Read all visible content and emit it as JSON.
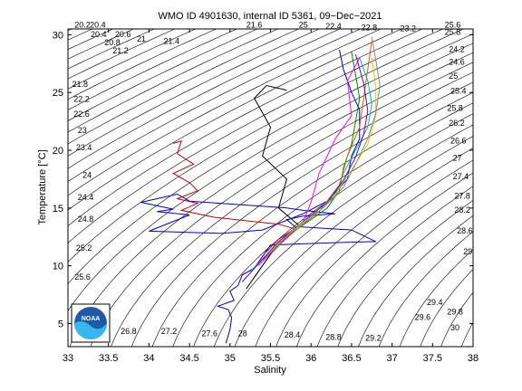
{
  "chart_data": {
    "type": "line",
    "title": "WMO ID 4901630, internal ID 5361, 09−Dec−2021",
    "xlabel": "Salinity",
    "ylabel": "Temperature [°C]",
    "xlim": [
      33,
      38
    ],
    "ylim": [
      3,
      30.5
    ],
    "x_ticks": [
      33,
      33.5,
      34,
      34.5,
      35,
      35.5,
      36,
      36.5,
      37,
      37.5,
      38
    ],
    "x_tick_labels": [
      "33",
      "33.5",
      "34",
      "34.5",
      "35",
      "35.5",
      "36",
      "36.5",
      "37",
      "37.5",
      "38"
    ],
    "y_ticks": [
      5,
      10,
      15,
      20,
      25,
      30
    ],
    "y_tick_labels": [
      "5",
      "10",
      "15",
      "20",
      "25",
      "30"
    ],
    "grid": false,
    "logo_text": "NOAA",
    "density_contours": {
      "levels": [
        20.2,
        20.4,
        20.6,
        20.8,
        21,
        21.2,
        21.4,
        21.6,
        21.8,
        22,
        22.2,
        22.4,
        22.6,
        22.8,
        23,
        23.2,
        23.4,
        23.6,
        23.8,
        24,
        24.2,
        24.4,
        24.6,
        24.8,
        25,
        25.2,
        25.4,
        25.6,
        25.8,
        26,
        26.2,
        26.4,
        26.6,
        26.8,
        27,
        27.2,
        27.4,
        27.6,
        27.8,
        28,
        28.2,
        28.4,
        28.6,
        28.8,
        29,
        29.2,
        29.4,
        29.6,
        29.8,
        30
      ],
      "labels": [
        {
          "text": "20.2",
          "s": 33.08,
          "t": 30.6
        },
        {
          "text": "20.4",
          "s": 33.27,
          "t": 30.6
        },
        {
          "text": "20.4",
          "s": 33.28,
          "t": 29.8
        },
        {
          "text": "20.6",
          "s": 33.58,
          "t": 29.8
        },
        {
          "text": "20.8",
          "s": 33.45,
          "t": 29.1
        },
        {
          "text": "21",
          "s": 33.85,
          "t": 29.4
        },
        {
          "text": "21.2",
          "s": 33.55,
          "t": 28.4
        },
        {
          "text": "21.4",
          "s": 34.18,
          "t": 29.2
        },
        {
          "text": "21.6",
          "s": 35.2,
          "t": 30.6
        },
        {
          "text": "25",
          "s": 35.85,
          "t": 30.6
        },
        {
          "text": "22.4",
          "s": 36.18,
          "t": 30.5
        },
        {
          "text": "22.8",
          "s": 36.62,
          "t": 30.4
        },
        {
          "text": "23.2",
          "s": 37.1,
          "t": 30.3
        },
        {
          "text": "25.6",
          "s": 37.65,
          "t": 30.6
        },
        {
          "text": "25.8",
          "s": 37.65,
          "t": 30.0
        },
        {
          "text": "21.8",
          "s": 33.05,
          "t": 25.5
        },
        {
          "text": "22.2",
          "s": 33.07,
          "t": 24.2
        },
        {
          "text": "22.6",
          "s": 33.07,
          "t": 22.9
        },
        {
          "text": "23",
          "s": 33.12,
          "t": 21.5
        },
        {
          "text": "23.4",
          "s": 33.1,
          "t": 20.0
        },
        {
          "text": "24",
          "s": 33.18,
          "t": 17.6
        },
        {
          "text": "24.4",
          "s": 33.12,
          "t": 15.7
        },
        {
          "text": "24.8",
          "s": 33.12,
          "t": 13.8
        },
        {
          "text": "25.2",
          "s": 33.1,
          "t": 11.3
        },
        {
          "text": "25.6",
          "s": 33.08,
          "t": 8.8
        },
        {
          "text": "26",
          "s": 33.13,
          "t": 6.2
        },
        {
          "text": "26.8",
          "s": 33.65,
          "t": 4.1
        },
        {
          "text": "27.2",
          "s": 34.15,
          "t": 4.1
        },
        {
          "text": "27.6",
          "s": 34.65,
          "t": 3.9
        },
        {
          "text": "28",
          "s": 35.1,
          "t": 3.9
        },
        {
          "text": "28.4",
          "s": 35.67,
          "t": 3.8
        },
        {
          "text": "28.8",
          "s": 36.18,
          "t": 3.6
        },
        {
          "text": "29.2",
          "s": 36.67,
          "t": 3.5
        },
        {
          "text": "24.2",
          "s": 37.7,
          "t": 28.5
        },
        {
          "text": "24.6",
          "s": 37.7,
          "t": 27.4
        },
        {
          "text": "25",
          "s": 37.7,
          "t": 26.2
        },
        {
          "text": "25.4",
          "s": 37.72,
          "t": 24.9
        },
        {
          "text": "25.8",
          "s": 37.68,
          "t": 23.4
        },
        {
          "text": "26.2",
          "s": 37.7,
          "t": 22.1
        },
        {
          "text": "26.6",
          "s": 37.72,
          "t": 20.6
        },
        {
          "text": "27",
          "s": 37.75,
          "t": 19.1
        },
        {
          "text": "27.4",
          "s": 37.75,
          "t": 17.5
        },
        {
          "text": "27.8",
          "s": 37.77,
          "t": 15.8
        },
        {
          "text": "28.2",
          "s": 37.77,
          "t": 14.6
        },
        {
          "text": "28.6",
          "s": 37.8,
          "t": 12.8
        },
        {
          "text": "29",
          "s": 37.88,
          "t": 11.0
        },
        {
          "text": "29.4",
          "s": 37.43,
          "t": 6.6
        },
        {
          "text": "29.8",
          "s": 37.68,
          "t": 5.8
        },
        {
          "text": "29.6",
          "s": 37.28,
          "t": 5.3
        },
        {
          "text": "30",
          "s": 37.72,
          "t": 4.4
        }
      ]
    },
    "series": [
      {
        "color": "#0000cc",
        "points": [
          [
            34.95,
            3.3
          ],
          [
            35.0,
            4.5
          ],
          [
            35.02,
            5.5
          ],
          [
            34.98,
            6.2
          ],
          [
            34.85,
            6.5
          ],
          [
            35.05,
            7.0
          ],
          [
            35.0,
            7.8
          ],
          [
            35.1,
            8.3
          ],
          [
            35.15,
            9.2
          ],
          [
            35.3,
            9.8
          ],
          [
            35.4,
            10.8
          ],
          [
            35.5,
            11.8
          ],
          [
            35.9,
            11.9
          ],
          [
            36.3,
            12.0
          ],
          [
            36.8,
            12.1
          ],
          [
            36.5,
            13.1
          ],
          [
            35.8,
            13.4
          ],
          [
            35.7,
            14.0
          ],
          [
            35.9,
            14.3
          ],
          [
            36.3,
            14.5
          ],
          [
            35.9,
            14.8
          ],
          [
            35.7,
            15.0
          ],
          [
            35.1,
            15.3
          ],
          [
            34.5,
            15.6
          ],
          [
            34.35,
            16.2
          ],
          [
            33.9,
            15.5
          ],
          [
            34.3,
            14.9
          ],
          [
            34.1,
            14.7
          ],
          [
            34.5,
            14.4
          ],
          [
            34.0,
            13.0
          ],
          [
            34.9,
            12.8
          ],
          [
            35.4,
            13.1
          ],
          [
            35.9,
            14.5
          ],
          [
            36.2,
            15.6
          ],
          [
            36.45,
            17.5
          ],
          [
            36.5,
            19.5
          ],
          [
            36.6,
            21.0
          ],
          [
            36.6,
            23.5
          ],
          [
            36.5,
            25.0
          ],
          [
            36.4,
            27.0
          ],
          [
            36.35,
            28.7
          ]
        ]
      },
      {
        "color": "#cc0000",
        "points": [
          [
            35.45,
            11.2
          ],
          [
            35.6,
            12.3
          ],
          [
            35.8,
            13.2
          ],
          [
            35.6,
            13.6
          ],
          [
            34.8,
            14.2
          ],
          [
            34.4,
            14.8
          ],
          [
            34.6,
            15.4
          ],
          [
            34.35,
            15.8
          ],
          [
            34.6,
            16.5
          ],
          [
            34.5,
            17.2
          ],
          [
            34.3,
            18.0
          ],
          [
            34.55,
            18.8
          ],
          [
            34.35,
            19.7
          ],
          [
            34.4,
            20.8
          ],
          [
            34.3,
            20.6
          ]
        ]
      },
      {
        "color": "#008800",
        "points": [
          [
            35.3,
            9.0
          ],
          [
            35.5,
            11.0
          ],
          [
            35.75,
            12.8
          ],
          [
            36.0,
            14.0
          ],
          [
            36.2,
            15.0
          ],
          [
            36.35,
            16.5
          ],
          [
            36.4,
            18.5
          ],
          [
            36.5,
            20.5
          ],
          [
            36.55,
            22.5
          ],
          [
            36.6,
            24.5
          ],
          [
            36.55,
            26.5
          ],
          [
            36.5,
            28.5
          ]
        ]
      },
      {
        "color": "#000000",
        "points": [
          [
            35.2,
            8.0
          ],
          [
            35.55,
            11.5
          ],
          [
            35.85,
            13.5
          ],
          [
            35.6,
            15.0
          ],
          [
            35.7,
            17.5
          ],
          [
            35.4,
            19.5
          ],
          [
            35.5,
            22.0
          ],
          [
            35.3,
            24.5
          ],
          [
            35.45,
            25.6
          ],
          [
            35.7,
            25.2
          ]
        ]
      },
      {
        "color": "#ff00ff",
        "points": [
          [
            35.35,
            10.0
          ],
          [
            35.7,
            12.5
          ],
          [
            35.9,
            13.8
          ],
          [
            36.0,
            15.5
          ],
          [
            36.1,
            18.0
          ],
          [
            36.3,
            21.0
          ],
          [
            36.5,
            23.0
          ],
          [
            36.45,
            26.0
          ],
          [
            36.6,
            28.0
          ]
        ]
      },
      {
        "color": "#00bbbb",
        "points": [
          [
            35.25,
            9.5
          ],
          [
            35.65,
            12.4
          ],
          [
            36.05,
            14.4
          ],
          [
            36.3,
            16.0
          ],
          [
            36.4,
            18.0
          ],
          [
            36.55,
            20.0
          ],
          [
            36.7,
            22.0
          ],
          [
            36.75,
            24.0
          ],
          [
            36.7,
            26.0
          ],
          [
            36.6,
            28.0
          ]
        ]
      },
      {
        "color": "#cc6600",
        "points": [
          [
            35.4,
            10.5
          ],
          [
            35.8,
            13.0
          ],
          [
            36.1,
            14.7
          ],
          [
            36.35,
            17.0
          ],
          [
            36.45,
            19.5
          ],
          [
            36.6,
            22.0
          ],
          [
            36.65,
            24.5
          ],
          [
            36.7,
            27.0
          ],
          [
            36.75,
            29.5
          ]
        ]
      },
      {
        "color": "#cccc00",
        "points": [
          [
            35.5,
            11.3
          ],
          [
            35.75,
            12.9
          ],
          [
            36.0,
            14.3
          ],
          [
            36.3,
            16.2
          ],
          [
            36.5,
            18.3
          ],
          [
            36.7,
            20.5
          ],
          [
            36.8,
            23.0
          ],
          [
            36.8,
            25.5
          ],
          [
            36.75,
            28.0
          ]
        ]
      },
      {
        "color": "#6600cc",
        "points": [
          [
            35.15,
            8.6
          ],
          [
            35.6,
            12.1
          ],
          [
            35.95,
            14.1
          ],
          [
            36.2,
            15.5
          ],
          [
            36.4,
            17.4
          ],
          [
            36.55,
            19.4
          ],
          [
            36.65,
            21.4
          ],
          [
            36.7,
            23.4
          ],
          [
            36.65,
            25.8
          ],
          [
            36.55,
            28.3
          ]
        ]
      },
      {
        "color": "#888888",
        "points": [
          [
            35.45,
            10.8
          ],
          [
            35.8,
            13.3
          ],
          [
            36.15,
            15.0
          ],
          [
            36.4,
            16.8
          ],
          [
            36.55,
            18.8
          ],
          [
            36.7,
            21.0
          ],
          [
            36.8,
            23.2
          ],
          [
            36.85,
            25.6
          ],
          [
            36.8,
            27.8
          ],
          [
            36.75,
            29.8
          ]
        ]
      }
    ]
  }
}
